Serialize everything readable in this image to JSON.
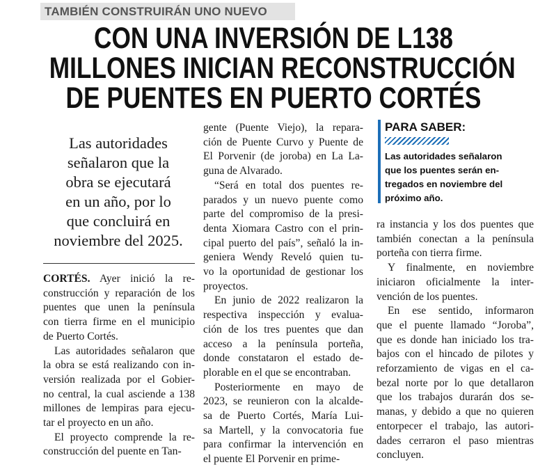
{
  "kicker": "TAMBIÉN CONSTRUIRÁN UNO NUEVO",
  "headline": [
    "CON UNA INVERSIÓN DE L138",
    "MILLONES INICIAN RECONSTRUCCIÓN",
    "DE PUENTES EN PUERTO CORTÉS"
  ],
  "pull_quote": [
    "Las autoridades",
    "señalaron que la",
    "obra se ejecutará",
    "en un año, por lo",
    "que concluirá en",
    "noviembre del 2025."
  ],
  "sidebar": {
    "title": "PARA SABER:",
    "lines": [
      "Las autoridades señalaron",
      "que los puentes serán en-",
      "tregados en noviembre del",
      "próximo año."
    ]
  },
  "columns": [
    {
      "lead": "CORTÉS.",
      "paragraphs": [
        [
          "Ayer inició la re-",
          "construcción y reparación de los",
          "puentes que unen la península",
          "con tierra firme en el municipio",
          "de Puerto Cortés."
        ],
        [
          "Las autoridades señalaron que",
          "la obra se está realizando con in-",
          "versión realizada por el Gobier-",
          "no central, la cual asciende a 138",
          "millones de lempiras para ejecu-",
          "tar el proyecto en un año."
        ],
        [
          "El proyecto comprende la re-",
          "construcción del puente en Tan-"
        ]
      ]
    },
    {
      "paragraphs": [
        [
          "gente (Puente Viejo), la repara-",
          "ción de Puente Curvo y Puente de",
          "El Porvenir (de joroba) en La La-",
          "guna de Alvarado."
        ],
        [
          "“Será en total dos puentes re-",
          "parados y un nuevo puente como",
          "parte del compromiso de la presi-",
          "denta Xiomara Castro con el prin-",
          "cipal puerto del país”, señaló la in-",
          "geniera Wendy Reveló quien tu-",
          "vo la oportunidad de gestionar los",
          "proyectos."
        ],
        [
          "En junio de 2022 realizaron la",
          "respectiva inspección y evalua-",
          "ción de los tres puentes que dan",
          "acceso a la península porteña,",
          "donde constataron el estado de-",
          "plorable en el que se encontraban."
        ],
        [
          "Posteriormente en mayo de",
          "2023, se reunieron con la alcalde-",
          "sa de Puerto Cortés, María Lui-",
          "sa Martell, y la convocatoria fue",
          "para confirmar la intervención en",
          "el puente El Porvenir en prime-"
        ]
      ]
    },
    {
      "paragraphs": [
        [
          "ra instancia y los dos puentes que",
          "también conectan a la península",
          "porteña con tierra firme."
        ],
        [
          "Y finalmente, en noviembre",
          "iniciaron oficialmente la inter-",
          "vención de los puentes."
        ],
        [
          "En ese sentido, informaron",
          "que el puente llamado “Joroba”,",
          "que es donde han iniciado los tra-",
          "bajos con el hincado de pilotes y",
          "reforzamiento de vigas en el ca-",
          "bezal norte por lo que detallaron",
          "que los trabajos durarán dos se-",
          "manas, y debido a que no quieren",
          "entorpecer el trabajo, las autori-",
          "dades cerraron el paso mientras",
          "concluyen."
        ]
      ]
    }
  ]
}
